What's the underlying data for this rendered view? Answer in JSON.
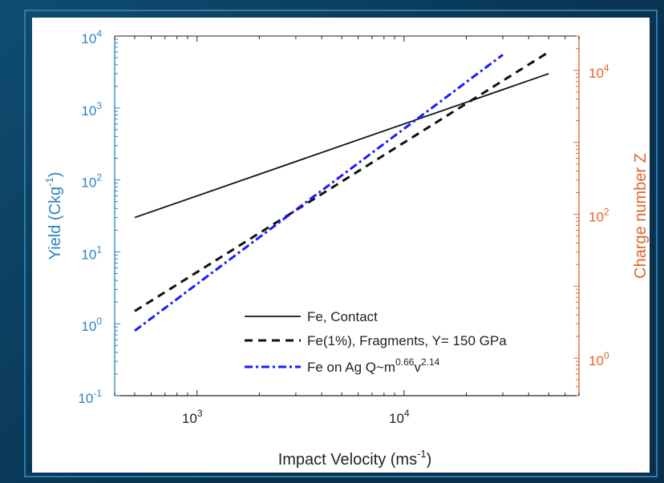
{
  "chart_data": {
    "type": "line",
    "xlabel": "Impact Velocity (ms",
    "xlabel_sup": "-1",
    "xlabel_end": ")",
    "ylabel": "Yield (Ckg",
    "ylabel_sup": "-1",
    "ylabel_end": ")",
    "y2label": "Charge number Z",
    "x_scale": "log",
    "y_scale": "log",
    "y2_scale": "log",
    "xlim": [
      400,
      70000
    ],
    "ylim": [
      0.1,
      10000
    ],
    "y2lim": [
      0.3,
      30000
    ],
    "x_ticks": [
      {
        "value": 1000,
        "base": "10",
        "exp": "3"
      },
      {
        "value": 10000,
        "base": "10",
        "exp": "4"
      }
    ],
    "y_ticks": [
      {
        "value": 0.1,
        "base": "10",
        "exp": "-1"
      },
      {
        "value": 1,
        "base": "10",
        "exp": "0"
      },
      {
        "value": 10,
        "base": "10",
        "exp": "1"
      },
      {
        "value": 100,
        "base": "10",
        "exp": "2"
      },
      {
        "value": 1000,
        "base": "10",
        "exp": "3"
      },
      {
        "value": 10000,
        "base": "10",
        "exp": "4"
      }
    ],
    "y2_ticks": [
      {
        "value": 1,
        "base": "10",
        "exp": "0"
      },
      {
        "value": 100,
        "base": "10",
        "exp": "2"
      },
      {
        "value": 10000,
        "base": "10",
        "exp": "4"
      }
    ],
    "grid": false,
    "legend_position": "bottom-right",
    "series": [
      {
        "name": "Fe, Contact",
        "style": "solid",
        "color": "#111111",
        "x": [
          500,
          50000
        ],
        "y": [
          30,
          3000
        ]
      },
      {
        "name": "Fe(1%), Fragments, Y= 150 GPa",
        "name_sup": "",
        "name_end": "",
        "style": "dashed",
        "color": "#111111",
        "x": [
          500,
          50000
        ],
        "y": [
          1.5,
          6000
        ]
      },
      {
        "name": "Fe on Ag Q~m",
        "name_sup": "0.66",
        "name_mid": "v",
        "name_sup2": "2.14",
        "style": "dashdot",
        "color": "#1a1aff",
        "x": [
          500,
          30000
        ],
        "y": [
          0.8,
          5500
        ]
      }
    ],
    "colors": {
      "left_axis": "#2b83c0",
      "right_axis": "#e0642a",
      "frame": "#0c3552"
    }
  }
}
